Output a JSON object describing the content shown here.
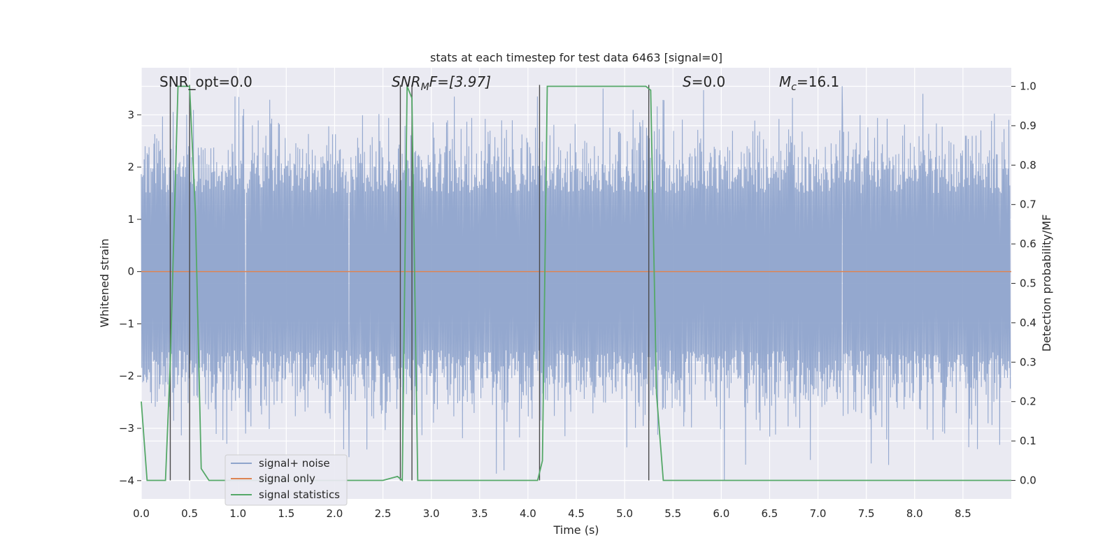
{
  "chart_data": {
    "type": "line",
    "title": "stats at each timestep for test data 6463 [signal=0]",
    "xlabel": "Time (s)",
    "ylabel": "Whitened strain",
    "y2label": "Detection probability/MF",
    "xlim": [
      0.0,
      9.0
    ],
    "ylim": [
      -4.35,
      3.9
    ],
    "y2lim": [
      -0.047,
      1.047
    ],
    "xticks": [
      "0.0",
      "0.5",
      "1.0",
      "1.5",
      "2.0",
      "2.5",
      "3.0",
      "3.5",
      "4.0",
      "4.5",
      "5.0",
      "5.5",
      "6.0",
      "6.5",
      "7.0",
      "7.5",
      "8.0",
      "8.5"
    ],
    "yticks": [
      "−4",
      "−3",
      "−2",
      "−1",
      "0",
      "1",
      "2",
      "3"
    ],
    "y2ticks": [
      "0.0",
      "0.1",
      "0.2",
      "0.3",
      "0.4",
      "0.5",
      "0.6",
      "0.7",
      "0.8",
      "0.9",
      "1.0"
    ],
    "grid": true,
    "legend_position": "lower-left",
    "annotations": {
      "snr_opt": "SNR_opt=0.0",
      "snr_mf_main": "SNR",
      "snr_mf_sub": "M",
      "snr_mf_rest": "F=[3.97]",
      "s_main": "S",
      "s_rest": "=0.0",
      "mc_main": "M",
      "mc_sub": "c",
      "mc_rest": "=16.1"
    },
    "noise_summary": {
      "typical_amplitude": 2.0,
      "outlier_peaks": [
        {
          "x": 0.5,
          "y": 3.1
        },
        {
          "x": 0.97,
          "y": 3.35
        },
        {
          "x": 4.1,
          "y": 3.35
        },
        {
          "x": 7.25,
          "y": 3.55
        },
        {
          "x": 2.15,
          "y": -3.55
        },
        {
          "x": 6.03,
          "y": -4.0
        },
        {
          "x": 7.73,
          "y": -3.7
        },
        {
          "x": 1.08,
          "y": -3.1
        }
      ]
    },
    "vertical_markers": [
      0.3,
      0.5,
      2.68,
      2.8,
      4.12,
      5.25
    ],
    "series": [
      {
        "name": "signal+ noise",
        "color": "#8fa4cc",
        "description": "whitened strain noise, roughly ±2 band"
      },
      {
        "name": "signal only",
        "color": "#dd8452",
        "x": [
          0.0,
          9.0
        ],
        "y": [
          0.0,
          0.0
        ]
      },
      {
        "name": "signal statistics",
        "color": "#55a868",
        "axis": "right",
        "x": [
          0.0,
          0.06,
          0.25,
          0.3,
          0.38,
          0.5,
          0.56,
          0.62,
          0.7,
          0.8,
          2.5,
          2.65,
          2.7,
          2.75,
          2.8,
          2.86,
          3.1,
          3.3,
          4.0,
          4.1,
          4.15,
          4.2,
          5.22,
          5.27,
          5.33,
          5.4,
          9.0
        ],
        "y": [
          0.2,
          0.0,
          0.0,
          0.3,
          1.0,
          1.0,
          0.68,
          0.03,
          0.0,
          0.0,
          0.0,
          0.01,
          0.0,
          1.0,
          0.97,
          0.0,
          0.0,
          0.0,
          0.0,
          0.0,
          0.05,
          1.0,
          1.0,
          0.99,
          0.22,
          0.0,
          0.0
        ]
      }
    ]
  },
  "colors": {
    "plot_bg": "#eaeaf2",
    "grid": "#ffffff",
    "noise": "#8fa4cc",
    "signal_only": "#dd8452",
    "statistics": "#55a868",
    "marker": "#4a4a4a"
  }
}
